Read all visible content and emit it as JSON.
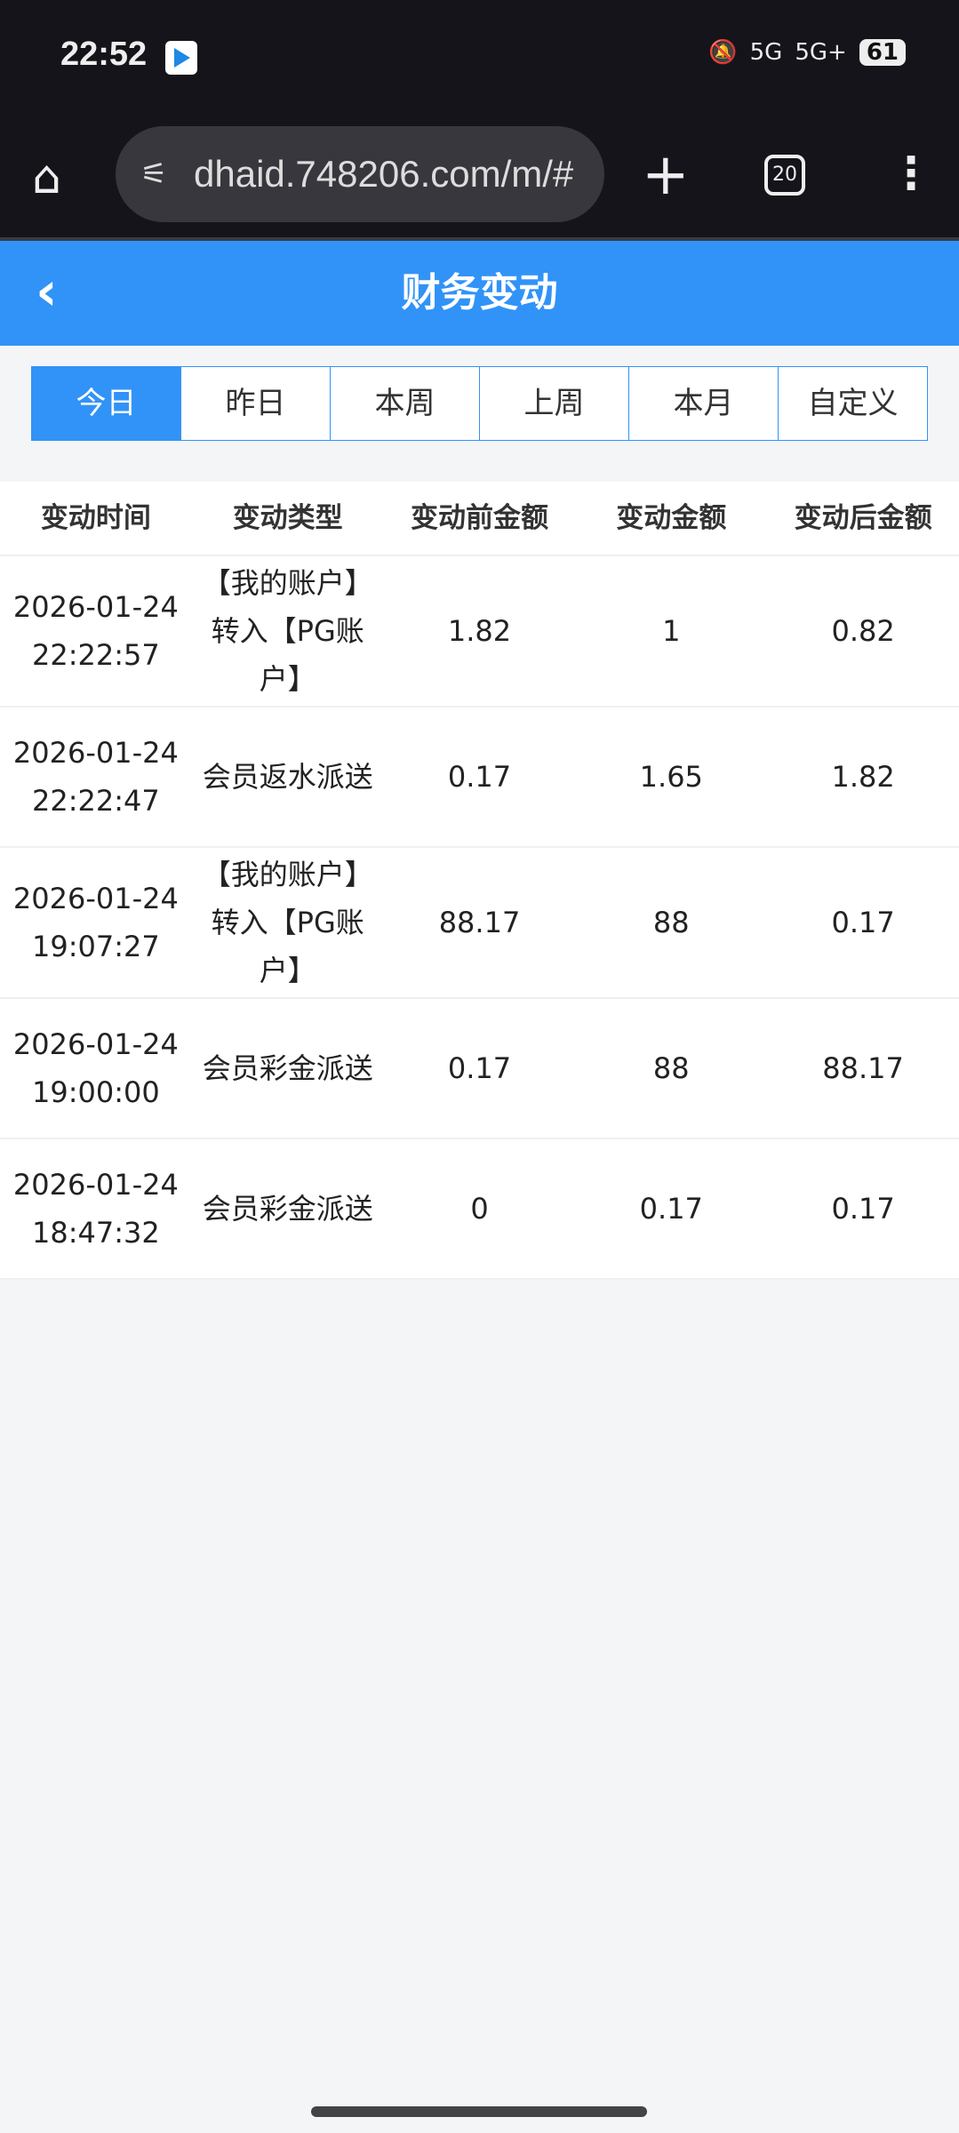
{
  "status_bar": {
    "time": "22:52",
    "network1": "5G",
    "network2": "5G+",
    "battery": "61"
  },
  "browser": {
    "url": "dhaid.748206.com/m/#",
    "tab_count": "20"
  },
  "header": {
    "title": "财务变动",
    "back_icon": "chevron-left-icon"
  },
  "accent_color": "#3193f7",
  "filters": [
    {
      "label": "今日",
      "active": true
    },
    {
      "label": "昨日"
    },
    {
      "label": "本周"
    },
    {
      "label": "上周"
    },
    {
      "label": "本月"
    },
    {
      "label": "自定义"
    }
  ],
  "table": {
    "columns": [
      "变动时间",
      "变动类型",
      "变动前金额",
      "变动金额",
      "变动后金额"
    ],
    "rows": [
      {
        "date": "2026-01-24",
        "time": "22:22:57",
        "type": "【我的账户】转入【PG账户】",
        "before": "1.82",
        "amount": "1",
        "after": "0.82"
      },
      {
        "date": "2026-01-24",
        "time": "22:22:47",
        "type": "会员返水派送",
        "before": "0.17",
        "amount": "1.65",
        "after": "1.82"
      },
      {
        "date": "2026-01-24",
        "time": "19:07:27",
        "type": "【我的账户】转入【PG账户】",
        "before": "88.17",
        "amount": "88",
        "after": "0.17"
      },
      {
        "date": "2026-01-24",
        "time": "19:00:00",
        "type": "会员彩金派送",
        "before": "0.17",
        "amount": "88",
        "after": "88.17"
      },
      {
        "date": "2026-01-24",
        "time": "18:47:32",
        "type": "会员彩金派送",
        "before": "0",
        "amount": "0.17",
        "after": "0.17"
      }
    ]
  }
}
